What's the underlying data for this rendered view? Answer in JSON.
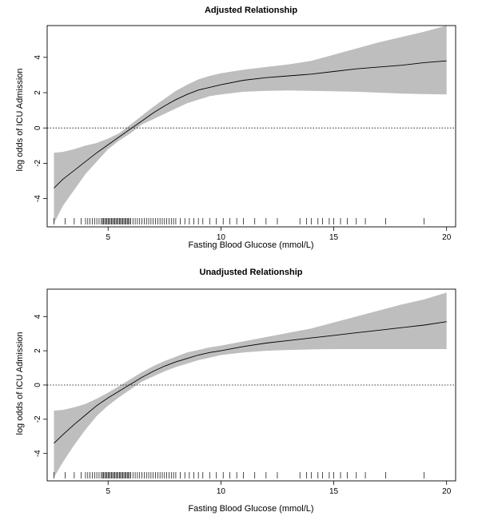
{
  "chart_data": [
    {
      "type": "line",
      "title": "Adjusted Relationship",
      "xlabel": "Fasting Blood Glucose (mmol/L)",
      "ylabel": "log odds of ICU Admission",
      "xlim": [
        2.3,
        20.4
      ],
      "ylim": [
        -5.6,
        5.8
      ],
      "xticks": [
        5,
        10,
        15,
        20
      ],
      "yticks": [
        -4,
        -2,
        0,
        2,
        4
      ],
      "reference_line": 0,
      "series": [
        {
          "x": [
            2.6,
            3,
            3.5,
            4,
            4.5,
            5,
            5.5,
            6,
            6.5,
            7,
            7.5,
            8,
            8.5,
            9,
            9.5,
            10,
            11,
            12,
            13,
            14,
            15,
            16,
            17,
            18,
            19,
            20
          ],
          "y": [
            -3.4,
            -2.9,
            -2.4,
            -1.9,
            -1.4,
            -0.95,
            -0.5,
            -0.05,
            0.4,
            0.85,
            1.25,
            1.6,
            1.9,
            2.15,
            2.3,
            2.45,
            2.7,
            2.85,
            2.95,
            3.05,
            3.2,
            3.35,
            3.45,
            3.55,
            3.7,
            3.8
          ],
          "lower": [
            -5.4,
            -4.4,
            -3.5,
            -2.6,
            -1.9,
            -1.2,
            -0.7,
            -0.3,
            0.2,
            0.5,
            0.8,
            1.1,
            1.4,
            1.6,
            1.8,
            1.9,
            2.05,
            2.1,
            2.12,
            2.1,
            2.08,
            2.05,
            2.0,
            1.95,
            1.92,
            1.9
          ],
          "upper": [
            -1.4,
            -1.35,
            -1.2,
            -1.0,
            -0.85,
            -0.6,
            -0.3,
            0.2,
            0.7,
            1.2,
            1.65,
            2.1,
            2.45,
            2.75,
            2.95,
            3.1,
            3.3,
            3.45,
            3.6,
            3.8,
            4.15,
            4.5,
            4.85,
            5.15,
            5.45,
            5.8
          ]
        }
      ],
      "rug": [
        2.6,
        3.1,
        3.5,
        3.8,
        4.0,
        4.1,
        4.2,
        4.3,
        4.4,
        4.5,
        4.6,
        4.7,
        4.75,
        4.8,
        4.85,
        4.9,
        4.95,
        5.0,
        5.05,
        5.1,
        5.15,
        5.2,
        5.25,
        5.3,
        5.35,
        5.4,
        5.45,
        5.5,
        5.55,
        5.6,
        5.65,
        5.7,
        5.75,
        5.8,
        5.85,
        5.9,
        5.95,
        6.0,
        6.1,
        6.2,
        6.3,
        6.4,
        6.5,
        6.6,
        6.7,
        6.8,
        6.9,
        7.0,
        7.1,
        7.2,
        7.3,
        7.4,
        7.5,
        7.6,
        7.7,
        7.8,
        7.9,
        8.0,
        8.2,
        8.4,
        8.6,
        8.8,
        9.0,
        9.2,
        9.5,
        9.8,
        10.1,
        10.4,
        10.7,
        11.0,
        11.5,
        12.0,
        12.5,
        13.5,
        13.8,
        14.0,
        14.3,
        14.5,
        14.8,
        15.0,
        15.3,
        15.6,
        16.0,
        16.4,
        17.3,
        19.0
      ]
    },
    {
      "type": "line",
      "title": "Unadjusted Relationship",
      "xlabel": "Fasting Blood Glucose (mmol/L)",
      "ylabel": "log odds of ICU Admission",
      "xlim": [
        2.3,
        20.4
      ],
      "ylim": [
        -5.6,
        5.6
      ],
      "xticks": [
        5,
        10,
        15,
        20
      ],
      "yticks": [
        -4,
        -2,
        0,
        2,
        4
      ],
      "reference_line": 0,
      "series": [
        {
          "x": [
            2.6,
            3,
            3.5,
            4,
            4.5,
            5,
            5.5,
            6,
            6.5,
            7,
            7.5,
            8,
            8.5,
            9,
            9.5,
            10,
            11,
            12,
            13,
            14,
            15,
            16,
            17,
            18,
            19,
            20
          ],
          "y": [
            -3.4,
            -2.9,
            -2.3,
            -1.75,
            -1.2,
            -0.75,
            -0.35,
            0.05,
            0.45,
            0.8,
            1.1,
            1.35,
            1.55,
            1.75,
            1.9,
            2.0,
            2.25,
            2.45,
            2.6,
            2.75,
            2.9,
            3.05,
            3.2,
            3.35,
            3.5,
            3.7
          ],
          "lower": [
            -5.4,
            -4.5,
            -3.5,
            -2.6,
            -1.8,
            -1.2,
            -0.7,
            -0.25,
            0.2,
            0.5,
            0.8,
            1.05,
            1.25,
            1.45,
            1.6,
            1.75,
            1.9,
            2.0,
            2.05,
            2.08,
            2.1,
            2.1,
            2.1,
            2.1,
            2.1,
            2.1
          ],
          "upper": [
            -1.5,
            -1.45,
            -1.3,
            -1.1,
            -0.8,
            -0.45,
            -0.05,
            0.35,
            0.75,
            1.1,
            1.4,
            1.65,
            1.9,
            2.05,
            2.2,
            2.3,
            2.55,
            2.8,
            3.05,
            3.3,
            3.65,
            4.0,
            4.35,
            4.7,
            5.0,
            5.4
          ]
        }
      ],
      "rug": [
        2.6,
        3.1,
        3.5,
        3.8,
        4.0,
        4.1,
        4.2,
        4.3,
        4.4,
        4.5,
        4.6,
        4.7,
        4.75,
        4.8,
        4.85,
        4.9,
        4.95,
        5.0,
        5.05,
        5.1,
        5.15,
        5.2,
        5.25,
        5.3,
        5.35,
        5.4,
        5.45,
        5.5,
        5.55,
        5.6,
        5.65,
        5.7,
        5.75,
        5.8,
        5.85,
        5.9,
        5.95,
        6.0,
        6.1,
        6.2,
        6.3,
        6.4,
        6.5,
        6.6,
        6.7,
        6.8,
        6.9,
        7.0,
        7.1,
        7.2,
        7.3,
        7.4,
        7.5,
        7.6,
        7.7,
        7.8,
        7.9,
        8.0,
        8.2,
        8.4,
        8.6,
        8.8,
        9.0,
        9.2,
        9.5,
        9.8,
        10.1,
        10.4,
        10.7,
        11.0,
        11.5,
        12.0,
        12.5,
        13.5,
        13.8,
        14.0,
        14.3,
        14.5,
        14.8,
        15.0,
        15.3,
        15.6,
        16.0,
        16.4,
        17.3,
        19.0
      ]
    }
  ],
  "colors": {
    "band": "#bebebe",
    "line": "#000000",
    "frame": "#000000"
  }
}
